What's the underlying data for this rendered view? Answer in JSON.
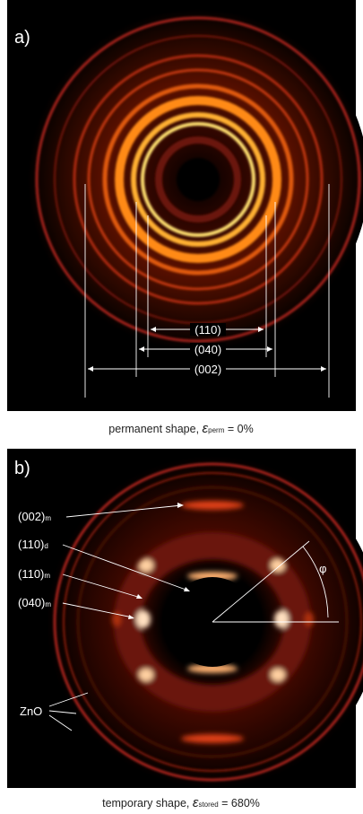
{
  "panel_a": {
    "label": "a)",
    "reflections": [
      "(110)",
      "(040)",
      "(002)"
    ],
    "caption": {
      "text": "permanent shape, ",
      "symbol": "ε",
      "subscript": "perm",
      "value": " = 0%"
    }
  },
  "panel_b": {
    "label": "b)",
    "annotations": [
      {
        "text": "(002)",
        "sub": "m"
      },
      {
        "text": "(110)",
        "sub": "d"
      },
      {
        "text": "(110)",
        "sub": "m"
      },
      {
        "text": "(040)",
        "sub": "m"
      }
    ],
    "zno": "ZnO",
    "angle": "φ",
    "caption": {
      "text": "temporary shape, ",
      "symbol": "ε",
      "subscript": "stored",
      "value": " = 680%"
    }
  }
}
